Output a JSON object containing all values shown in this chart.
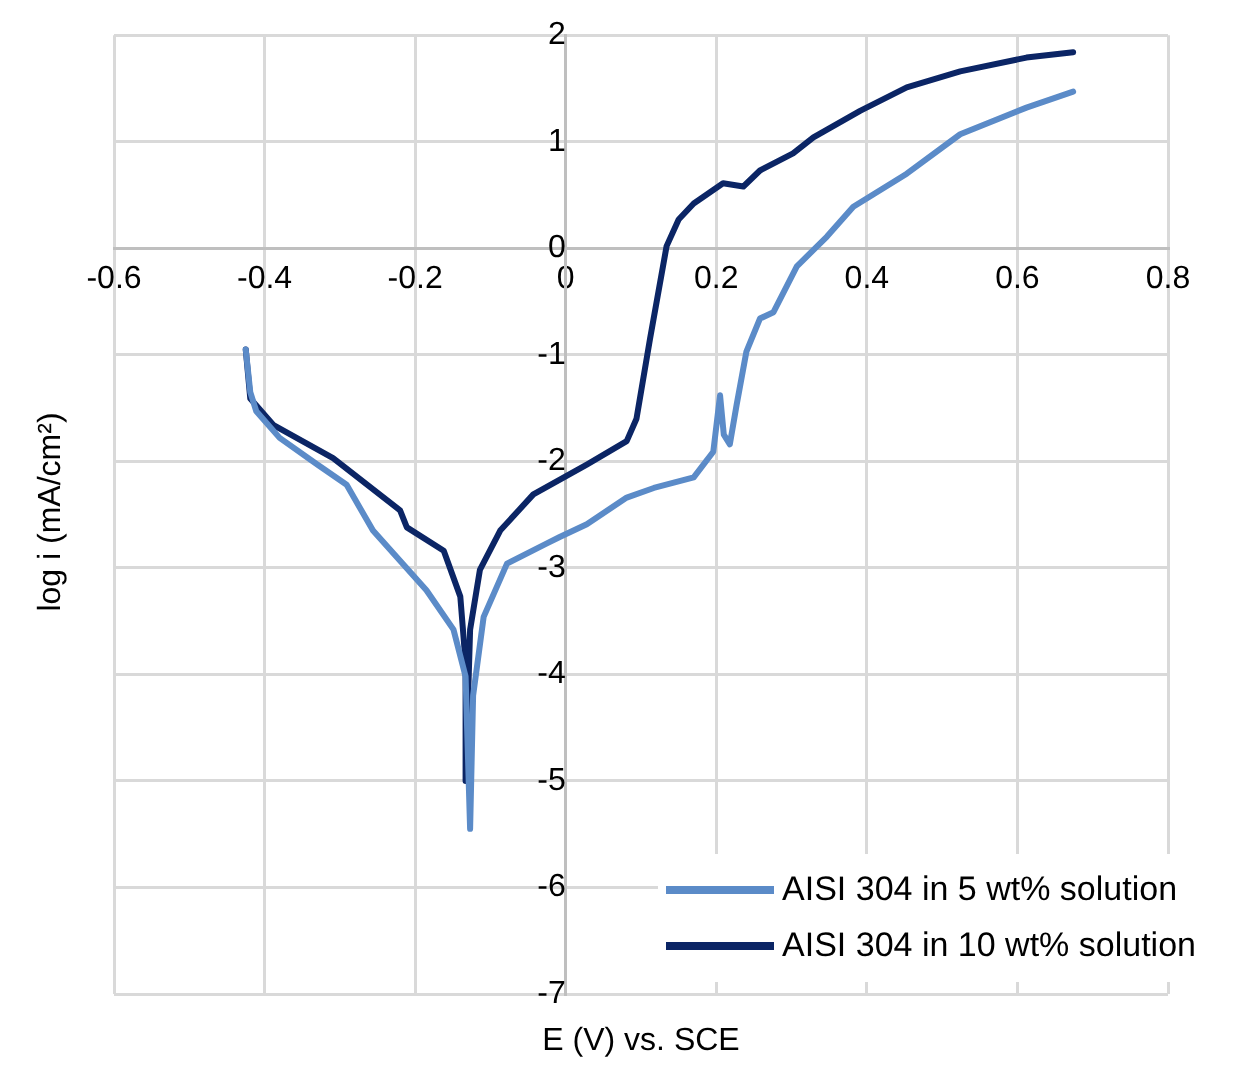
{
  "chart_data": {
    "type": "line",
    "xlabel": "E (V) vs. SCE",
    "ylabel": "log i (mA/cm²)",
    "xlim": [
      -0.6,
      0.8
    ],
    "xticks": [
      -0.6,
      -0.4,
      -0.2,
      0,
      0.2,
      0.4,
      0.6,
      0.8
    ],
    "ylim": [
      -7,
      2
    ],
    "yticks": [
      -7,
      -6,
      -5,
      -4,
      -3,
      -2,
      -1,
      0,
      1,
      2
    ],
    "grid": true,
    "legend": "bottom right",
    "marker": "none",
    "line_style": "solid",
    "series": [
      {
        "name": "AISI 304 in 5 wt% solution",
        "color": "#5b8bc8",
        "x": [
          -0.425,
          -0.419,
          -0.411,
          -0.38,
          -0.33,
          -0.291,
          -0.256,
          -0.185,
          -0.149,
          -0.133,
          -0.127,
          -0.123,
          -0.109,
          -0.078,
          -0.025,
          -0.008,
          0.028,
          0.081,
          0.117,
          0.17,
          0.196,
          0.205,
          0.21,
          0.218,
          0.227,
          0.24,
          0.258,
          0.276,
          0.307,
          0.347,
          0.382,
          0.453,
          0.524,
          0.612,
          0.674
        ],
        "values": [
          -0.95,
          -1.35,
          -1.53,
          -1.78,
          -2.03,
          -2.22,
          -2.65,
          -3.21,
          -3.58,
          -4.02,
          -5.45,
          -4.2,
          -3.46,
          -2.96,
          -2.77,
          -2.71,
          -2.59,
          -2.34,
          -2.25,
          -2.15,
          -1.91,
          -1.38,
          -1.75,
          -1.84,
          -1.47,
          -0.97,
          -0.66,
          -0.6,
          -0.17,
          0.11,
          0.39,
          0.7,
          1.07,
          1.32,
          1.47
        ]
      },
      {
        "name": "AISI 304 in 10 wt% solution",
        "color": "#0b2565",
        "x": [
          -0.425,
          -0.419,
          -0.388,
          -0.309,
          -0.22,
          -0.211,
          -0.162,
          -0.14,
          -0.133,
          -0.133,
          -0.127,
          -0.114,
          -0.087,
          -0.043,
          0.028,
          0.081,
          0.094,
          0.112,
          0.134,
          0.15,
          0.17,
          0.209,
          0.236,
          0.258,
          0.302,
          0.329,
          0.391,
          0.453,
          0.524,
          0.612,
          0.674
        ],
        "values": [
          -0.95,
          -1.41,
          -1.66,
          -1.97,
          -2.46,
          -2.62,
          -2.84,
          -3.27,
          -3.89,
          -5.0,
          -3.58,
          -3.02,
          -2.65,
          -2.31,
          -2.03,
          -1.81,
          -1.6,
          -0.85,
          0.02,
          0.27,
          0.42,
          0.61,
          0.58,
          0.73,
          0.89,
          1.04,
          1.29,
          1.51,
          1.66,
          1.79,
          1.84
        ]
      }
    ]
  }
}
